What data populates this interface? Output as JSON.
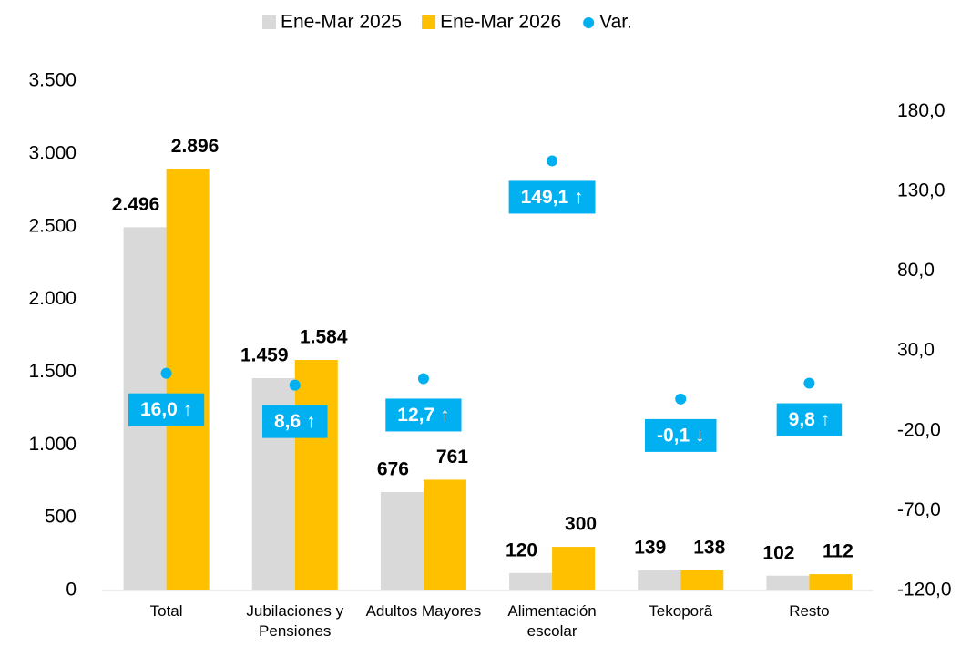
{
  "chart_data": {
    "type": "bar",
    "categories": [
      "Total",
      "Jubilaciones y Pensiones",
      "Adultos Mayores",
      "Alimentación escolar",
      "Tekoporã",
      "Resto"
    ],
    "series": [
      {
        "name": "Ene-Mar 2025",
        "color": "#d9d9d9",
        "values": [
          2496,
          1459,
          676,
          120,
          139,
          102
        ],
        "value_labels": [
          "2.496",
          "1.459",
          "676",
          "120",
          "139",
          "102"
        ]
      },
      {
        "name": "Ene-Mar 2026",
        "color": "#ffc000",
        "values": [
          2896,
          1584,
          761,
          300,
          138,
          112
        ],
        "value_labels": [
          "2.896",
          "1.584",
          "761",
          "300",
          "138",
          "112"
        ]
      },
      {
        "name": "Var.",
        "type": "scatter",
        "axis": "y2",
        "color": "#00b0f0",
        "values": [
          16.0,
          8.6,
          12.7,
          149.1,
          -0.1,
          9.8
        ],
        "value_labels": [
          "16,0 ↑",
          "8,6 ↑",
          "12,7 ↑",
          "149,1 ↑",
          "-0,1 ↓",
          "9,8 ↑"
        ]
      }
    ],
    "ylim": [
      0,
      3500
    ],
    "yticks": [
      0,
      500,
      {
        "value": 1000,
        "label": "1.000"
      },
      {
        "value": 1500,
        "label": "1.500"
      },
      {
        "value": 2000,
        "label": "2.000"
      },
      {
        "value": 2500,
        "label": "2.500"
      },
      {
        "value": 3000,
        "label": "3.000"
      },
      {
        "value": 3500,
        "label": "3.500"
      }
    ],
    "y2lim": [
      -120,
      199
    ],
    "y2ticks": [
      {
        "value": -120,
        "label": "-120,0"
      },
      {
        "value": -70,
        "label": "-70,0"
      },
      {
        "value": -20,
        "label": "-20,0"
      },
      {
        "value": 30,
        "label": "30,0"
      },
      {
        "value": 80,
        "label": "80,0"
      },
      {
        "value": 130,
        "label": "130,0"
      },
      {
        "value": 180,
        "label": "180,0"
      }
    ],
    "legend": "top"
  }
}
